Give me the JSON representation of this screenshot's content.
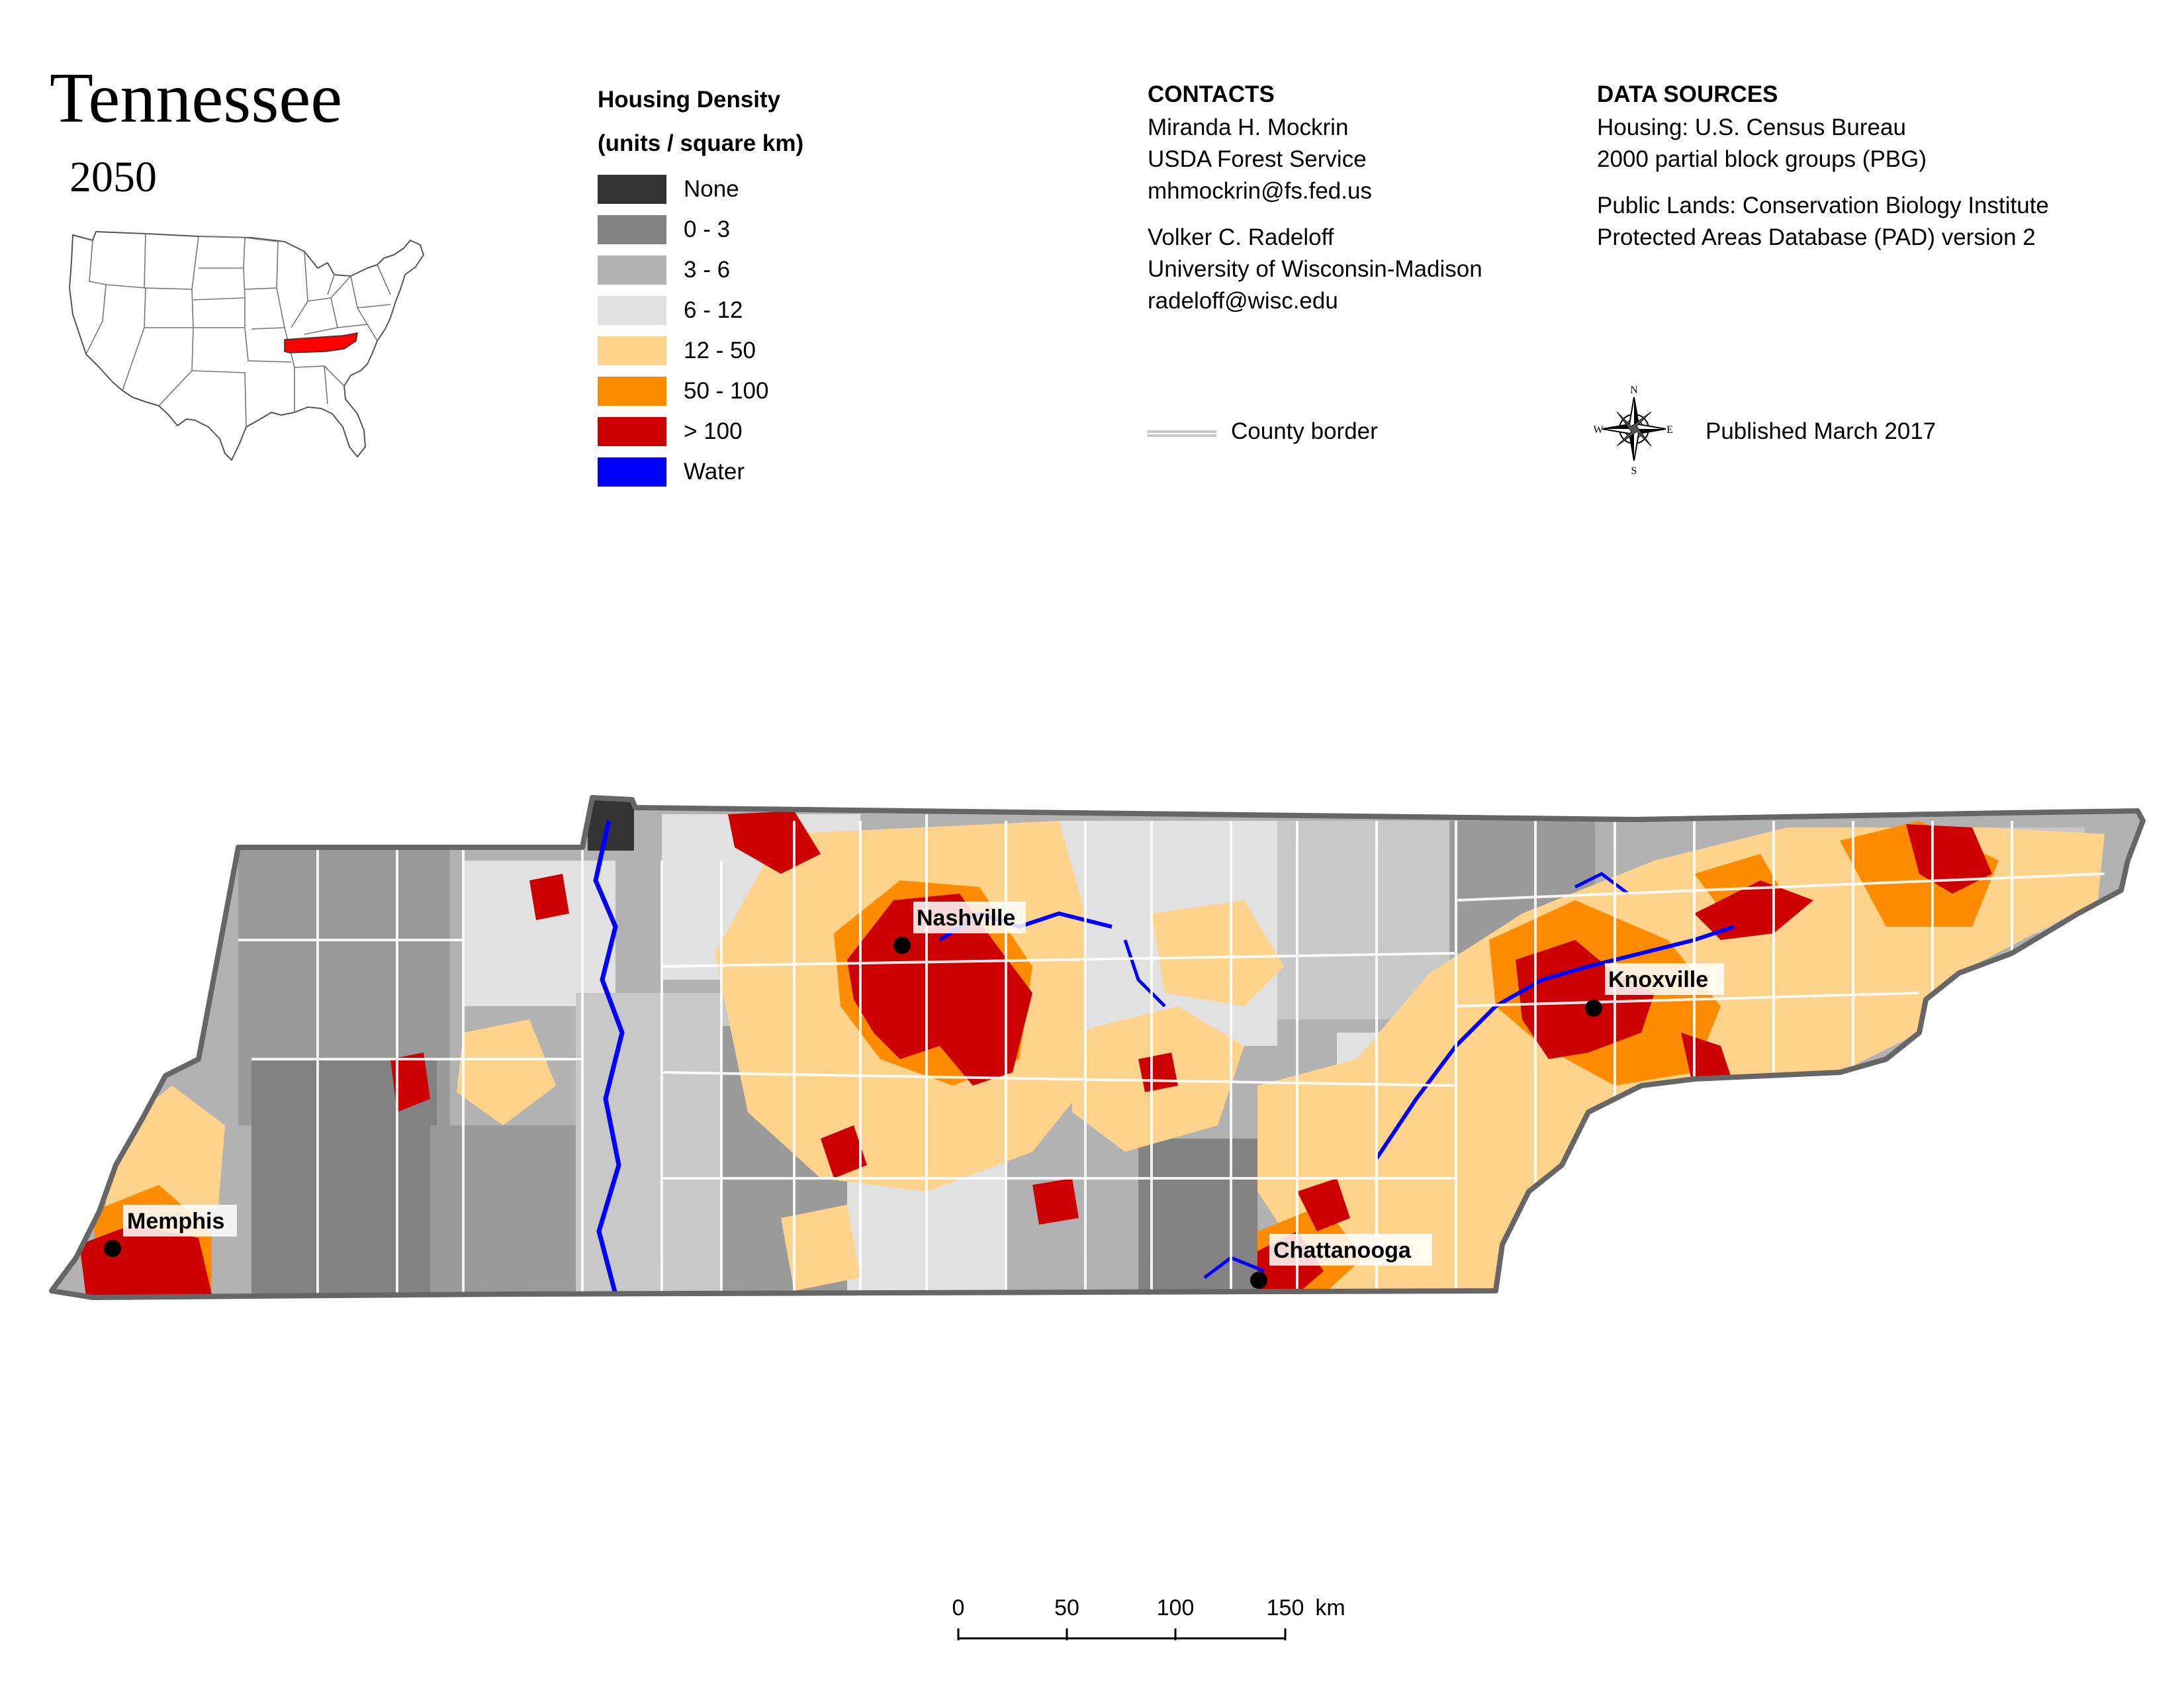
{
  "map": {
    "title": "Tennessee",
    "year": "2050"
  },
  "legend": {
    "title_line1": "Housing Density",
    "title_line2": "(units / square km)",
    "items": [
      {
        "label": "None",
        "color": "#343434"
      },
      {
        "label": "0 - 3",
        "color": "#828282"
      },
      {
        "label": "3 - 6",
        "color": "#b2b2b2"
      },
      {
        "label": "6 - 12",
        "color": "#e1e1e1"
      },
      {
        "label": "12 - 50",
        "color": "#ffd38c"
      },
      {
        "label": "50 - 100",
        "color": "#ff8c00"
      },
      {
        "label": "> 100",
        "color": "#cc0000"
      },
      {
        "label": "Water",
        "color": "#0000ff"
      }
    ]
  },
  "contacts": {
    "heading": "CONTACTS",
    "people": [
      {
        "name": "Miranda H. Mockrin",
        "org": "USDA Forest Service",
        "email": "mhmockrin@fs.fed.us"
      },
      {
        "name": "Volker C. Radeloff",
        "org": "University of Wisconsin-Madison",
        "email": "radeloff@wisc.edu"
      }
    ]
  },
  "data_sources": {
    "heading": "DATA SOURCES",
    "housing_line1": "Housing: U.S. Census Bureau",
    "housing_line2": "2000 partial block groups (PBG)",
    "public_line1": "Public Lands: Conservation Biology Institute",
    "public_line2": "Protected Areas Database (PAD) version 2"
  },
  "county_border_label": "County border",
  "published": "Published March 2017",
  "compass": {
    "n": "N",
    "s": "S",
    "e": "E",
    "w": "W"
  },
  "cities": [
    {
      "name": "Nashville"
    },
    {
      "name": "Knoxville"
    },
    {
      "name": "Memphis"
    },
    {
      "name": "Chattanooga"
    }
  ],
  "scale": {
    "ticks": [
      "0",
      "50",
      "100",
      "150"
    ],
    "unit": "km"
  },
  "locator": {
    "highlight_color": "#ff0000"
  }
}
